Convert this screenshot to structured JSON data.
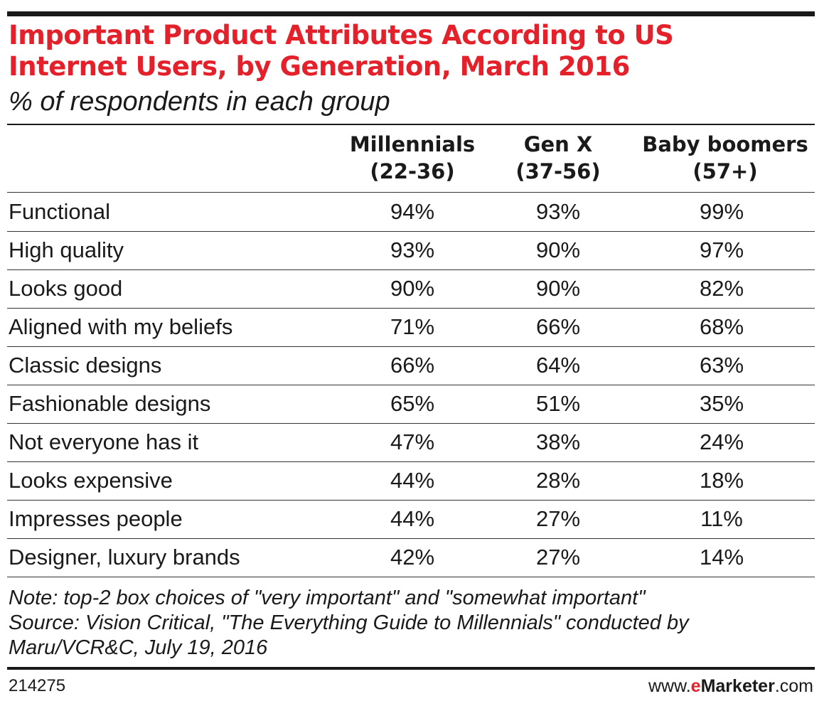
{
  "chart_data": {
    "type": "table",
    "title_line1": "Important Product Attributes According to US",
    "title_line2": "Internet Users, by Generation, March 2016",
    "subtitle": "% of respondents in each group",
    "columns": [
      {
        "name": "Millennials",
        "range": "(22-36)"
      },
      {
        "name": "Gen X",
        "range": "(37-56)"
      },
      {
        "name": "Baby boomers",
        "range": "(57+)"
      }
    ],
    "rows": [
      {
        "label": "Functional",
        "values": [
          "94%",
          "93%",
          "99%"
        ]
      },
      {
        "label": "High quality",
        "values": [
          "93%",
          "90%",
          "97%"
        ]
      },
      {
        "label": "Looks good",
        "values": [
          "90%",
          "90%",
          "82%"
        ]
      },
      {
        "label": "Aligned with my beliefs",
        "values": [
          "71%",
          "66%",
          "68%"
        ]
      },
      {
        "label": "Classic designs",
        "values": [
          "66%",
          "64%",
          "63%"
        ]
      },
      {
        "label": "Fashionable designs",
        "values": [
          "65%",
          "51%",
          "35%"
        ]
      },
      {
        "label": "Not everyone has it",
        "values": [
          "47%",
          "38%",
          "24%"
        ]
      },
      {
        "label": "Looks expensive",
        "values": [
          "44%",
          "28%",
          "18%"
        ]
      },
      {
        "label": "Impresses people",
        "values": [
          "44%",
          "27%",
          "11%"
        ]
      },
      {
        "label": "Designer, luxury brands",
        "values": [
          "42%",
          "27%",
          "14%"
        ]
      }
    ],
    "note_line1": "Note: top-2 box choices of \"very important\" and \"somewhat important\"",
    "note_line2": "Source: Vision Critical, \"The Everything Guide to Millennials\" conducted by",
    "note_line3": "Maru/VCR&C, July 19, 2016"
  },
  "footer": {
    "chart_id": "214275",
    "brand_prefix": "www.",
    "brand_e": "e",
    "brand_name": "Marketer",
    "brand_suffix": ".com"
  },
  "colors": {
    "title": "#e4202a",
    "text": "#1a1a1a",
    "rule": "#1a1a1a"
  }
}
